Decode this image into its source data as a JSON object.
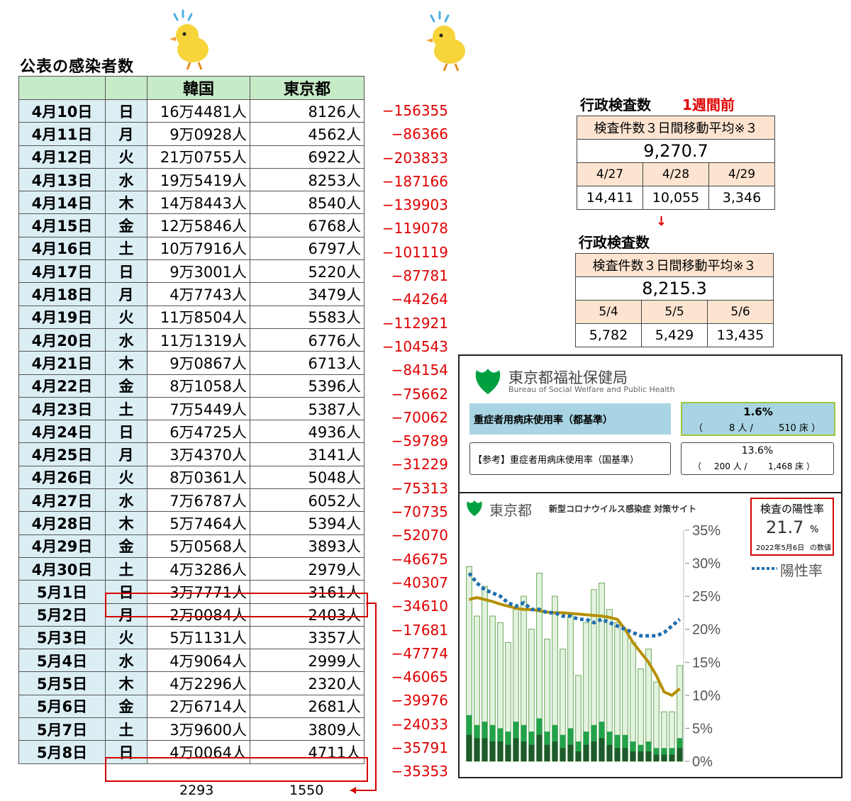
{
  "title": "公表の感染者数",
  "table": {
    "headers": {
      "korea": "韓国",
      "tokyo": "東京都"
    },
    "rows": [
      {
        "date": "4月10日",
        "weekday": "日",
        "korea": "16万4481人",
        "tokyo": "8126人",
        "diff": "−156355"
      },
      {
        "date": "4月11日",
        "weekday": "月",
        "korea": "9万0928人",
        "tokyo": "4562人",
        "diff": "−86366"
      },
      {
        "date": "4月12日",
        "weekday": "火",
        "korea": "21万0755人",
        "tokyo": "6922人",
        "diff": "−203833"
      },
      {
        "date": "4月13日",
        "weekday": "水",
        "korea": "19万5419人",
        "tokyo": "8253人",
        "diff": "−187166"
      },
      {
        "date": "4月14日",
        "weekday": "木",
        "korea": "14万8443人",
        "tokyo": "8540人",
        "diff": "−139903"
      },
      {
        "date": "4月15日",
        "weekday": "金",
        "korea": "12万5846人",
        "tokyo": "6768人",
        "diff": "−119078"
      },
      {
        "date": "4月16日",
        "weekday": "土",
        "korea": "10万7916人",
        "tokyo": "6797人",
        "diff": "−101119"
      },
      {
        "date": "4月17日",
        "weekday": "日",
        "korea": "9万3001人",
        "tokyo": "5220人",
        "diff": "−87781"
      },
      {
        "date": "4月18日",
        "weekday": "月",
        "korea": "4万7743人",
        "tokyo": "3479人",
        "diff": "−44264"
      },
      {
        "date": "4月19日",
        "weekday": "火",
        "korea": "11万8504人",
        "tokyo": "5583人",
        "diff": "−112921"
      },
      {
        "date": "4月20日",
        "weekday": "水",
        "korea": "11万1319人",
        "tokyo": "6776人",
        "diff": "−104543"
      },
      {
        "date": "4月21日",
        "weekday": "木",
        "korea": "9万0867人",
        "tokyo": "6713人",
        "diff": "−84154"
      },
      {
        "date": "4月22日",
        "weekday": "金",
        "korea": "8万1058人",
        "tokyo": "5396人",
        "diff": "−75662"
      },
      {
        "date": "4月23日",
        "weekday": "土",
        "korea": "7万5449人",
        "tokyo": "5387人",
        "diff": "−70062"
      },
      {
        "date": "4月24日",
        "weekday": "日",
        "korea": "6万4725人",
        "tokyo": "4936人",
        "diff": "−59789"
      },
      {
        "date": "4月25日",
        "weekday": "月",
        "korea": "3万4370人",
        "tokyo": "3141人",
        "diff": "−31229"
      },
      {
        "date": "4月26日",
        "weekday": "火",
        "korea": "8万0361人",
        "tokyo": "5048人",
        "diff": "−75313"
      },
      {
        "date": "4月27日",
        "weekday": "水",
        "korea": "7万6787人",
        "tokyo": "6052人",
        "diff": "−70735"
      },
      {
        "date": "4月28日",
        "weekday": "木",
        "korea": "5万7464人",
        "tokyo": "5394人",
        "diff": "−52070"
      },
      {
        "date": "4月29日",
        "weekday": "金",
        "korea": "5万0568人",
        "tokyo": "3893人",
        "diff": "−46675"
      },
      {
        "date": "4月30日",
        "weekday": "土",
        "korea": "4万3286人",
        "tokyo": "2979人",
        "diff": "−40307"
      },
      {
        "date": "5月1日",
        "weekday": "日",
        "korea": "3万7771人",
        "tokyo": "3161人",
        "diff": "−34610"
      },
      {
        "date": "5月2日",
        "weekday": "月",
        "korea": "2万0084人",
        "tokyo": "2403人",
        "diff": "−17681"
      },
      {
        "date": "5月3日",
        "weekday": "火",
        "korea": "5万1131人",
        "tokyo": "3357人",
        "diff": "−47774"
      },
      {
        "date": "5月4日",
        "weekday": "水",
        "korea": "4万9064人",
        "tokyo": "2999人",
        "diff": "−46065"
      },
      {
        "date": "5月5日",
        "weekday": "木",
        "korea": "4万2296人",
        "tokyo": "2320人",
        "diff": "−39976"
      },
      {
        "date": "5月6日",
        "weekday": "金",
        "korea": "2万6714人",
        "tokyo": "2681人",
        "diff": "−24033"
      },
      {
        "date": "5月7日",
        "weekday": "土",
        "korea": "3万9600人",
        "tokyo": "3809人",
        "diff": "−35791"
      },
      {
        "date": "5月8日",
        "weekday": "日",
        "korea": "4万0064人",
        "tokyo": "4711人",
        "diff": "−35353"
      }
    ],
    "bottom_korea": "2293",
    "bottom_tokyo": "1550"
  },
  "kensa_prev": {
    "title": "行政検査数",
    "subtitle": "1週間前",
    "label": "検査件数３日間移動平均※３",
    "average": "9,270.7",
    "days": [
      "4/27",
      "4/28",
      "4/29"
    ],
    "values": [
      "14,411",
      "10,055",
      "3,346"
    ]
  },
  "arrow": "↓",
  "kensa_now": {
    "title": "行政検査数",
    "label": "検査件数３日間移動平均※３",
    "average": "8,215.3",
    "days": [
      "5/4",
      "5/5",
      "5/6"
    ],
    "values": [
      "5,782",
      "5,429",
      "13,435"
    ]
  },
  "bureau": {
    "name": "東京都福祉保健局",
    "name_en": "Bureau of Social Welfare and Public Health",
    "severe_label": "重症者用病床使用率（都基準）",
    "severe_rate": "1.6%",
    "severe_detail_paren_open": "（",
    "severe_patients": "8 人 /",
    "severe_beds": "510 床 ）",
    "ref_label": "【参考】重症者用病床使用率（国基準）",
    "ref_rate": "13.6%",
    "ref_paren_open": "（",
    "ref_patients": "200 人 /",
    "ref_beds": "1,468 床 ）"
  },
  "site": {
    "logo_text": "東京都",
    "site_name": "新型コロナウイルス感染症 対策サイト",
    "positivity_title": "検査の陽性率",
    "positivity_value": "21.7",
    "positivity_unit": "%",
    "positivity_date": "2022年5月6日",
    "positivity_date_suffix": "の数値",
    "legend": "陽性率"
  },
  "colors": {
    "header_green": "#c7eac7",
    "date_blue": "#dbeef4",
    "diff_red": "#e00000",
    "kensa_pink": "#fde4d0",
    "severe_blue": "#a8d4e3",
    "logo_green": "#00a040",
    "rate_gold": "#b59000",
    "dotted_blue": "#1f6fb0"
  },
  "chart_data": {
    "type": "bar",
    "ylabels": [
      "35%",
      "30%",
      "25%",
      "20%",
      "15%",
      "10%",
      "5%",
      "0%"
    ],
    "ylim": [
      0,
      35
    ],
    "series": [
      {
        "name": "陽性率",
        "values": [
          28.5,
          27,
          26,
          25.5,
          25,
          24,
          23.5,
          24,
          23,
          23,
          22.5,
          22.5,
          22,
          22,
          21.5,
          21.5,
          21,
          21.5,
          21,
          20.5,
          20,
          19.5,
          19,
          19,
          19,
          19.5,
          20.5,
          21.5
        ]
      }
    ],
    "avg_values": [
      24.5,
      24.8,
      24.5,
      24.2,
      23.8,
      23.5,
      23.2,
      23,
      23,
      22.8,
      22.6,
      22.5,
      22.5,
      22.4,
      22.3,
      22.2,
      22.1,
      22,
      21.8,
      21.5,
      20,
      18,
      16.5,
      15,
      13,
      10.5,
      10,
      11
    ],
    "bar_totals": [
      29.5,
      22,
      26.5,
      22,
      21,
      18,
      23,
      25,
      20,
      28.5,
      18.5,
      25,
      17,
      22,
      13,
      21,
      26,
      27,
      23,
      21,
      20,
      18,
      14,
      17,
      12,
      7.5,
      7.5,
      14.5
    ],
    "bar_mid": [
      7,
      5.5,
      6,
      5.5,
      5,
      4.5,
      6,
      5.5,
      4.5,
      6.5,
      4.5,
      5.5,
      4,
      5,
      3,
      4.5,
      5.5,
      6,
      4.5,
      4,
      4,
      3,
      2.5,
      3,
      2,
      2,
      2,
      3.5
    ],
    "bar_low": [
      4,
      3.5,
      3.5,
      3,
      3,
      2.5,
      3.5,
      3,
      2.5,
      4,
      2.5,
      3,
      2,
      2.5,
      1.5,
      2.5,
      3,
      3.5,
      2.5,
      2,
      2,
      1.5,
      1.5,
      1.5,
      1,
      1,
      1,
      2
    ]
  }
}
